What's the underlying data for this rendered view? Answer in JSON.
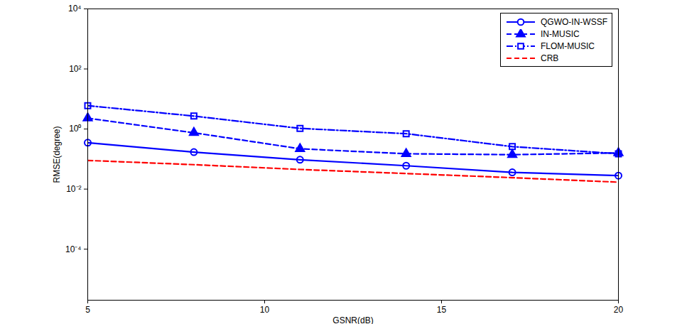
{
  "chart_data": {
    "type": "line",
    "x_label": "GSNR(dB)",
    "y_label": "RMSE(degree)",
    "x": [
      5,
      8,
      11,
      14,
      17,
      20
    ],
    "xlim": [
      5,
      20
    ],
    "xticks": [
      5,
      10,
      15,
      20
    ],
    "log": "y",
    "ylim": [
      2e-06,
      10000
    ],
    "yticks": [
      {
        "value": 0.0001,
        "label": "10⁻⁴"
      },
      {
        "value": 0.01,
        "label": "10⁻²"
      },
      {
        "value": 1,
        "label": "10⁰"
      },
      {
        "value": 100,
        "label": "10²"
      },
      {
        "value": 10000,
        "label": "10⁴"
      }
    ],
    "grid": false,
    "legend": "top-right",
    "series": [
      {
        "name": "QGWO-IN-WSSF",
        "color": "#0000ff",
        "marker": "circle",
        "line_style": "solid",
        "values": [
          0.35,
          0.17,
          0.095,
          0.06,
          0.036,
          0.028
        ]
      },
      {
        "name": "IN-MUSIC",
        "color": "#0000ff",
        "marker": "triangle",
        "line_style": "dashed",
        "values": [
          2.3,
          0.75,
          0.22,
          0.15,
          0.14,
          0.16
        ]
      },
      {
        "name": "FLOM-MUSIC",
        "color": "#0000ff",
        "marker": "square",
        "line_style": "dashdot",
        "values": [
          6,
          2.7,
          1.05,
          0.7,
          0.26,
          0.15
        ]
      },
      {
        "name": "CRB",
        "color": "#ff0000",
        "marker": "none",
        "line_style": "dashed",
        "values": [
          0.09,
          0.065,
          0.045,
          0.033,
          0.024,
          0.017
        ]
      }
    ]
  }
}
